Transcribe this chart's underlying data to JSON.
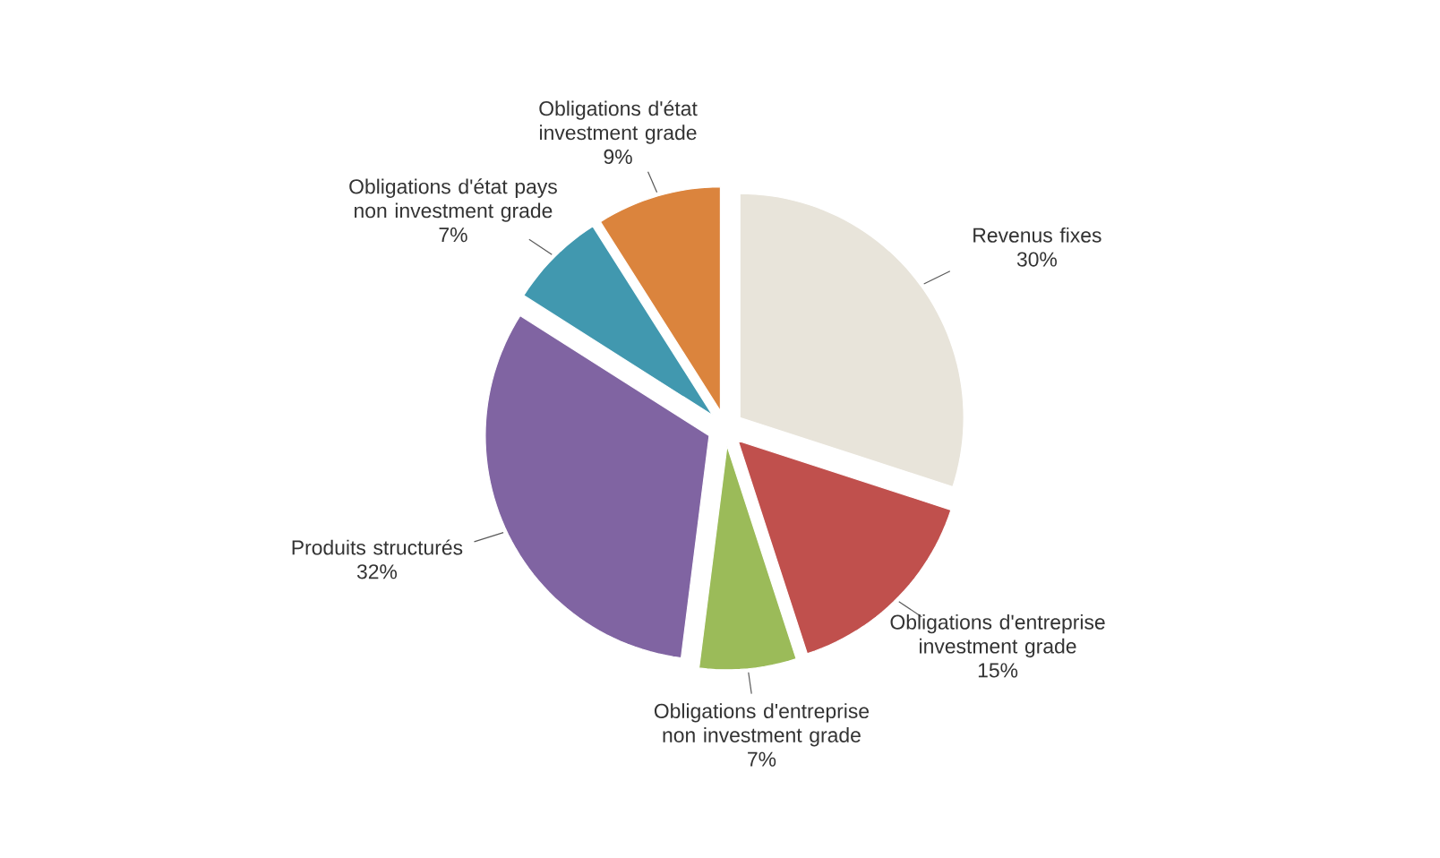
{
  "chart_data": {
    "type": "pie",
    "categories": [
      "Revenus fixes",
      "Obligations d'entreprise investment grade",
      "Obligations d'entreprise non investment grade",
      "Produits structurés",
      "Obligations d'état pays non investment grade",
      "Obligations d'état investment grade"
    ],
    "values": [
      30,
      15,
      7,
      32,
      7,
      9
    ],
    "colors": [
      "#e8e4da",
      "#c0504d",
      "#9bbb59",
      "#8064a2",
      "#4198af",
      "#db843d"
    ],
    "value_labels": [
      "30%",
      "15%",
      "7%",
      "32%",
      "7%",
      "9%"
    ]
  }
}
